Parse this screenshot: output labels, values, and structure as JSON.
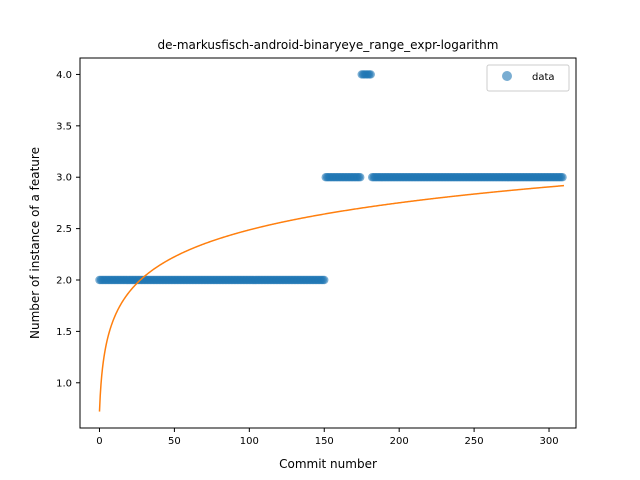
{
  "chart_data": {
    "type": "scatter",
    "title": "de-markusfisch-android-binaryeye_range_expr-logarithm",
    "xlabel": "Commit number",
    "ylabel": "Number of instance of a feature",
    "xlim": [
      -13,
      318
    ],
    "ylim": [
      0.56,
      4.16
    ],
    "xticks": [
      0,
      50,
      100,
      150,
      200,
      250,
      300
    ],
    "yticks": [
      1.0,
      1.5,
      2.0,
      2.5,
      3.0,
      3.5,
      4.0
    ],
    "xtick_labels": [
      "0",
      "50",
      "100",
      "150",
      "200",
      "250",
      "300"
    ],
    "ytick_labels": [
      "1.0",
      "1.5",
      "2.0",
      "2.5",
      "3.0",
      "3.5",
      "4.0"
    ],
    "grid": false,
    "legend": {
      "position": "top-right",
      "entries": [
        "data"
      ]
    },
    "series": [
      {
        "name": "data",
        "kind": "scatter",
        "color": "#1f77b4",
        "alpha": 0.6,
        "segments": [
          {
            "x_start": 0,
            "x_end": 151,
            "y": 2
          },
          {
            "x_start": 151,
            "x_end": 175,
            "y": 3
          },
          {
            "x_start": 175,
            "x_end": 182,
            "y": 4
          },
          {
            "x_start": 182,
            "x_end": 310,
            "y": 3
          }
        ]
      },
      {
        "kind": "line",
        "color": "#ff7f0e",
        "fit": {
          "type": "logarithmic",
          "a": 0.72,
          "b": 0.383,
          "x_start": 0,
          "x_end": 310
        }
      }
    ]
  }
}
